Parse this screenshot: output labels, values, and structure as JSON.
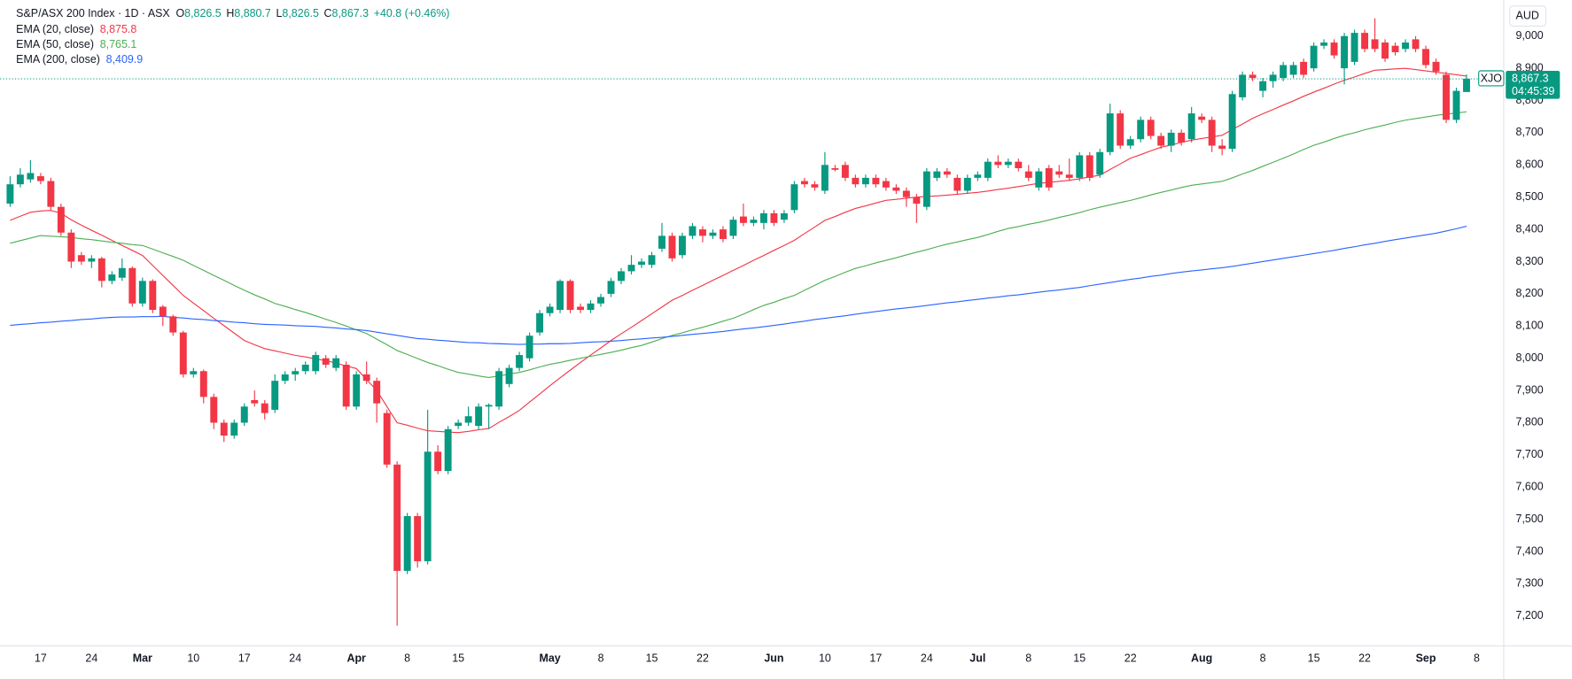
{
  "chart_data": {
    "type": "candlestick",
    "symbol": "S&P/ASX 200 Index · 1D · ASX",
    "header": [
      {
        "key": "O",
        "value": "8,826.5"
      },
      {
        "key": "H",
        "value": "8,880.7"
      },
      {
        "key": "L",
        "value": "8,826.5"
      },
      {
        "key": "C",
        "value": "8,867.3"
      }
    ],
    "change": "+40.8 (+0.46%)",
    "currency": "AUD",
    "ticker": "XJO",
    "last_price_label": "8,867.3",
    "countdown": "04:45:39",
    "up_color": "#089981",
    "down_color": "#f23645",
    "categories": [
      null,
      null,
      null,
      "17",
      null,
      null,
      null,
      null,
      "24",
      null,
      null,
      null,
      null,
      "Mar",
      null,
      null,
      null,
      null,
      "10",
      null,
      null,
      null,
      null,
      "17",
      null,
      null,
      null,
      null,
      "24",
      null,
      null,
      null,
      null,
      null,
      "Apr",
      null,
      null,
      null,
      null,
      "8",
      null,
      null,
      null,
      null,
      "15",
      null,
      null,
      null,
      null,
      null,
      null,
      null,
      null,
      "May",
      null,
      null,
      null,
      null,
      "8",
      null,
      null,
      null,
      null,
      "15",
      null,
      null,
      null,
      null,
      "22",
      null,
      null,
      null,
      null,
      null,
      null,
      "Jun",
      null,
      null,
      null,
      null,
      "10",
      null,
      null,
      null,
      null,
      "17",
      null,
      null,
      null,
      null,
      "24",
      null,
      null,
      null,
      null,
      "Jul",
      null,
      null,
      null,
      null,
      "8",
      null,
      null,
      null,
      null,
      "15",
      null,
      null,
      null,
      null,
      "22",
      null,
      null,
      null,
      null,
      null,
      null,
      "Aug",
      null,
      null,
      null,
      null,
      null,
      "8",
      null,
      null,
      null,
      null,
      "15",
      null,
      null,
      null,
      null,
      "22",
      null,
      null,
      null,
      null,
      null,
      "Sep",
      null,
      null,
      null,
      null,
      "8"
    ],
    "open": [
      8480,
      8540,
      8555,
      8565,
      8550,
      8470,
      8390,
      8320,
      8300,
      8310,
      8240,
      8250,
      8280,
      8170,
      8240,
      8160,
      8130,
      8080,
      7950,
      7960,
      7880,
      7800,
      7760,
      7800,
      7870,
      7860,
      7840,
      7930,
      7950,
      7960,
      7960,
      8000,
      7970,
      7980,
      7850,
      7950,
      7930,
      7830,
      7670,
      7340,
      7510,
      7370,
      7710,
      7650,
      7790,
      7800,
      7790,
      7850,
      7850,
      7920,
      7970,
      8000,
      8080,
      8140,
      8150,
      8240,
      8160,
      8150,
      8170,
      8200,
      8240,
      8270,
      8290,
      8290,
      8340,
      8380,
      8320,
      8380,
      8400,
      8380,
      8400,
      8380,
      8440,
      8420,
      8420,
      8450,
      8430,
      8460,
      8550,
      8540,
      8520,
      8590,
      8600,
      8560,
      8540,
      8560,
      8550,
      8530,
      8520,
      8500,
      8470,
      8560,
      8580,
      8560,
      8520,
      8560,
      8560,
      8610,
      8600,
      8610,
      8580,
      8530,
      8590,
      8580,
      8570,
      8560,
      8630,
      8570,
      8640,
      8760,
      8660,
      8680,
      8740,
      8690,
      8660,
      8700,
      8680,
      8750,
      8740,
      8660,
      8650,
      8810,
      8880,
      8830,
      8860,
      8870,
      8880,
      8920,
      8900,
      8970,
      8980,
      8900,
      8920,
      9010,
      8990,
      8980,
      8970,
      8960,
      8990,
      8960,
      8920,
      8880,
      8740,
      8826.5,
      null
    ],
    "high": [
      8565,
      8590,
      8615,
      8575,
      8560,
      8480,
      8400,
      8330,
      8320,
      8315,
      8270,
      8310,
      8285,
      8250,
      8245,
      8165,
      8135,
      8085,
      7970,
      7965,
      7890,
      7810,
      7810,
      7860,
      7900,
      7870,
      7950,
      7960,
      7970,
      7990,
      8020,
      8010,
      8010,
      7990,
      7960,
      7990,
      7940,
      7840,
      7680,
      7520,
      7520,
      7840,
      7730,
      7790,
      7810,
      7850,
      7860,
      7860,
      7970,
      7980,
      8020,
      8080,
      8150,
      8170,
      8245,
      8245,
      8170,
      8180,
      8200,
      8250,
      8280,
      8320,
      8310,
      8330,
      8420,
      8390,
      8390,
      8420,
      8410,
      8400,
      8410,
      8440,
      8480,
      8440,
      8460,
      8460,
      8460,
      8550,
      8560,
      8550,
      8640,
      8600,
      8610,
      8570,
      8570,
      8570,
      8560,
      8540,
      8530,
      8510,
      8590,
      8590,
      8590,
      8570,
      8570,
      8580,
      8620,
      8630,
      8620,
      8620,
      8600,
      8590,
      8600,
      8600,
      8620,
      8640,
      8640,
      8650,
      8790,
      8770,
      8690,
      8750,
      8750,
      8700,
      8710,
      8710,
      8780,
      8760,
      8750,
      8680,
      8830,
      8890,
      8890,
      8870,
      8890,
      8920,
      8920,
      8930,
      8980,
      8990,
      8990,
      9010,
      9020,
      9020,
      9055,
      8990,
      8980,
      8990,
      9000,
      8970,
      8930,
      8890,
      8840,
      8880.7,
      null
    ],
    "low": [
      8470,
      8530,
      8545,
      8540,
      8460,
      8380,
      8280,
      8290,
      8280,
      8220,
      8230,
      8240,
      8160,
      8160,
      8140,
      8100,
      8070,
      7940,
      7940,
      7860,
      7780,
      7740,
      7750,
      7790,
      7850,
      7810,
      7830,
      7920,
      7930,
      7950,
      7950,
      7970,
      7960,
      7840,
      7840,
      7920,
      7800,
      7660,
      7170,
      7330,
      7350,
      7360,
      7640,
      7640,
      7780,
      7790,
      7780,
      7780,
      7840,
      7910,
      7960,
      7990,
      8070,
      8130,
      8140,
      8140,
      8140,
      8140,
      8160,
      8190,
      8230,
      8260,
      8280,
      8280,
      8330,
      8300,
      8310,
      8370,
      8360,
      8370,
      8360,
      8370,
      8410,
      8410,
      8400,
      8410,
      8420,
      8450,
      8530,
      8520,
      8510,
      8580,
      8550,
      8530,
      8530,
      8530,
      8520,
      8510,
      8470,
      8420,
      8460,
      8550,
      8560,
      8510,
      8510,
      8550,
      8550,
      8590,
      8590,
      8580,
      8550,
      8520,
      8520,
      8560,
      8550,
      8550,
      8550,
      8560,
      8630,
      8650,
      8650,
      8670,
      8680,
      8650,
      8640,
      8660,
      8670,
      8730,
      8640,
      8630,
      8640,
      8800,
      8860,
      8810,
      8840,
      8860,
      8870,
      8870,
      8890,
      8960,
      8930,
      8850,
      8910,
      8950,
      8950,
      8920,
      8940,
      8950,
      8950,
      8900,
      8880,
      8730,
      8730,
      8826.5,
      null
    ],
    "close": [
      8540,
      8570,
      8575,
      8550,
      8470,
      8390,
      8300,
      8300,
      8310,
      8240,
      8260,
      8280,
      8170,
      8240,
      8150,
      8130,
      8080,
      7950,
      7960,
      7880,
      7800,
      7760,
      7800,
      7850,
      7860,
      7830,
      7930,
      7950,
      7960,
      7980,
      8010,
      7980,
      8000,
      7850,
      7950,
      7930,
      7860,
      7670,
      7340,
      7510,
      7370,
      7710,
      7650,
      7780,
      7800,
      7820,
      7850,
      7855,
      7960,
      7970,
      8010,
      8070,
      8140,
      8160,
      8240,
      8150,
      8150,
      8170,
      8190,
      8240,
      8270,
      8290,
      8300,
      8320,
      8380,
      8310,
      8380,
      8410,
      8380,
      8390,
      8370,
      8430,
      8420,
      8430,
      8450,
      8420,
      8450,
      8540,
      8540,
      8530,
      8600,
      8585,
      8560,
      8540,
      8560,
      8540,
      8530,
      8520,
      8500,
      8480,
      8580,
      8580,
      8570,
      8520,
      8560,
      8570,
      8610,
      8600,
      8610,
      8590,
      8560,
      8580,
      8530,
      8570,
      8560,
      8630,
      8560,
      8640,
      8760,
      8660,
      8680,
      8740,
      8690,
      8660,
      8700,
      8670,
      8760,
      8740,
      8660,
      8650,
      8820,
      8880,
      8870,
      8860,
      8880,
      8910,
      8910,
      8880,
      8970,
      8980,
      8940,
      9000,
      9010,
      8960,
      8960,
      8930,
      8950,
      8980,
      8960,
      8910,
      8890,
      8740,
      8830,
      8867.3,
      null
    ],
    "series": [
      {
        "name": "EMA (20, close)",
        "color": "#f23645",
        "value_label": "8,875.8",
        "values": [
          8428,
          8441,
          8453,
          8457,
          8459,
          8450,
          8430,
          8413,
          8397,
          8382,
          8366,
          8350,
          8335,
          8319,
          8288,
          8257,
          8226,
          8195,
          8171,
          8148,
          8124,
          8101,
          8078,
          8055,
          8042,
          8030,
          8023,
          8016,
          8009,
          8004,
          7998,
          7993,
          7985,
          7976,
          7968,
          7934,
          7900,
          7850,
          7800,
          7792,
          7783,
          7775,
          7773,
          7771,
          7769,
          7773,
          7778,
          7782,
          7801,
          7819,
          7838,
          7864,
          7889,
          7915,
          7939,
          7963,
          7987,
          8010,
          8032,
          8055,
          8076,
          8096,
          8117,
          8138,
          8159,
          8180,
          8195,
          8211,
          8226,
          8242,
          8257,
          8273,
          8288,
          8304,
          8319,
          8335,
          8350,
          8366,
          8387,
          8407,
          8428,
          8440,
          8453,
          8465,
          8473,
          8482,
          8490,
          8493,
          8497,
          8500,
          8502,
          8504,
          8506,
          8509,
          8512,
          8515,
          8519,
          8524,
          8528,
          8533,
          8538,
          8543,
          8546,
          8549,
          8552,
          8557,
          8563,
          8568,
          8586,
          8603,
          8621,
          8632,
          8644,
          8655,
          8662,
          8670,
          8677,
          8682,
          8687,
          8692,
          8710,
          8727,
          8745,
          8759,
          8772,
          8786,
          8799,
          8813,
          8826,
          8838,
          8851,
          8863,
          8873,
          8884,
          8894,
          8896,
          8898,
          8900,
          8896,
          8892,
          8888,
          8884,
          8880,
          8875.8,
          null
        ]
      },
      {
        "name": "EMA (50, close)",
        "color": "#4caf50",
        "value_label": "8,765.1",
        "values": [
          8357,
          8365,
          8373,
          8381,
          8379,
          8377,
          8375,
          8371,
          8368,
          8364,
          8360,
          8357,
          8353,
          8350,
          8339,
          8327,
          8316,
          8304,
          8288,
          8273,
          8257,
          8242,
          8226,
          8211,
          8197,
          8184,
          8170,
          8161,
          8151,
          8142,
          8132,
          8121,
          8111,
          8100,
          8088,
          8077,
          8059,
          8042,
          8024,
          8012,
          7999,
          7987,
          7977,
          7966,
          7956,
          7951,
          7945,
          7940,
          7945,
          7951,
          7956,
          7964,
          7973,
          7981,
          7987,
          7994,
          8000,
          8006,
          8012,
          8018,
          8025,
          8033,
          8040,
          8050,
          8061,
          8071,
          8079,
          8088,
          8096,
          8105,
          8115,
          8124,
          8137,
          8151,
          8164,
          8174,
          8185,
          8195,
          8211,
          8226,
          8242,
          8254,
          8267,
          8279,
          8287,
          8296,
          8304,
          8312,
          8321,
          8329,
          8337,
          8346,
          8354,
          8361,
          8368,
          8375,
          8384,
          8394,
          8403,
          8409,
          8416,
          8422,
          8429,
          8437,
          8444,
          8452,
          8461,
          8469,
          8476,
          8483,
          8490,
          8498,
          8507,
          8515,
          8522,
          8530,
          8537,
          8541,
          8545,
          8549,
          8560,
          8572,
          8583,
          8596,
          8608,
          8621,
          8634,
          8648,
          8661,
          8671,
          8682,
          8692,
          8700,
          8709,
          8717,
          8724,
          8732,
          8739,
          8744,
          8749,
          8754,
          8758,
          8761,
          8765.1,
          null
        ]
      },
      {
        "name": "EMA (200, close)",
        "color": "#2962ff",
        "value_label": "8,409.9",
        "values": [
          8102,
          8105,
          8107,
          8110,
          8112,
          8115,
          8117,
          8120,
          8122,
          8125,
          8127,
          8128,
          8128,
          8129,
          8129,
          8130,
          8127,
          8125,
          8122,
          8120,
          8117,
          8115,
          8112,
          8110,
          8107,
          8105,
          8104,
          8103,
          8101,
          8100,
          8099,
          8096,
          8094,
          8091,
          8089,
          8086,
          8081,
          8076,
          8071,
          8066,
          8061,
          8059,
          8056,
          8054,
          8051,
          8049,
          8048,
          8046,
          8045,
          8044,
          8043,
          8044,
          8044,
          8045,
          8045,
          8046,
          8048,
          8050,
          8051,
          8053,
          8055,
          8058,
          8060,
          8063,
          8065,
          8068,
          8071,
          8074,
          8077,
          8080,
          8083,
          8087,
          8091,
          8094,
          8098,
          8102,
          8106,
          8111,
          8115,
          8120,
          8124,
          8128,
          8132,
          8137,
          8141,
          8145,
          8149,
          8153,
          8156,
          8160,
          8164,
          8168,
          8172,
          8175,
          8179,
          8183,
          8187,
          8190,
          8194,
          8197,
          8201,
          8205,
          8209,
          8212,
          8216,
          8220,
          8225,
          8230,
          8235,
          8240,
          8245,
          8249,
          8254,
          8258,
          8263,
          8267,
          8271,
          8274,
          8278,
          8281,
          8285,
          8290,
          8295,
          8300,
          8305,
          8310,
          8315,
          8320,
          8325,
          8330,
          8335,
          8341,
          8346,
          8352,
          8357,
          8363,
          8368,
          8373,
          8378,
          8383,
          8388,
          8395,
          8402,
          8409.9,
          null
        ]
      }
    ],
    "ylim": [
      7107,
      9112
    ],
    "yticks": [
      {
        "value": 7200,
        "label": "7,200"
      },
      {
        "value": 7300,
        "label": "7,300"
      },
      {
        "value": 7400,
        "label": "7,400"
      },
      {
        "value": 7500,
        "label": "7,500"
      },
      {
        "value": 7600,
        "label": "7,600"
      },
      {
        "value": 7700,
        "label": "7,700"
      },
      {
        "value": 7800,
        "label": "7,800"
      },
      {
        "value": 7900,
        "label": "7,900"
      },
      {
        "value": 8000,
        "label": "8,000"
      },
      {
        "value": 8100,
        "label": "8,100"
      },
      {
        "value": 8200,
        "label": "8,200"
      },
      {
        "value": 8300,
        "label": "8,300"
      },
      {
        "value": 8400,
        "label": "8,400"
      },
      {
        "value": 8500,
        "label": "8,500"
      },
      {
        "value": 8600,
        "label": "8,600"
      },
      {
        "value": 8700,
        "label": "8,700"
      },
      {
        "value": 8800,
        "label": "8,800"
      },
      {
        "value": 8900,
        "label": "8,900"
      },
      {
        "value": 9000,
        "label": "9,000"
      }
    ],
    "grid": false
  }
}
